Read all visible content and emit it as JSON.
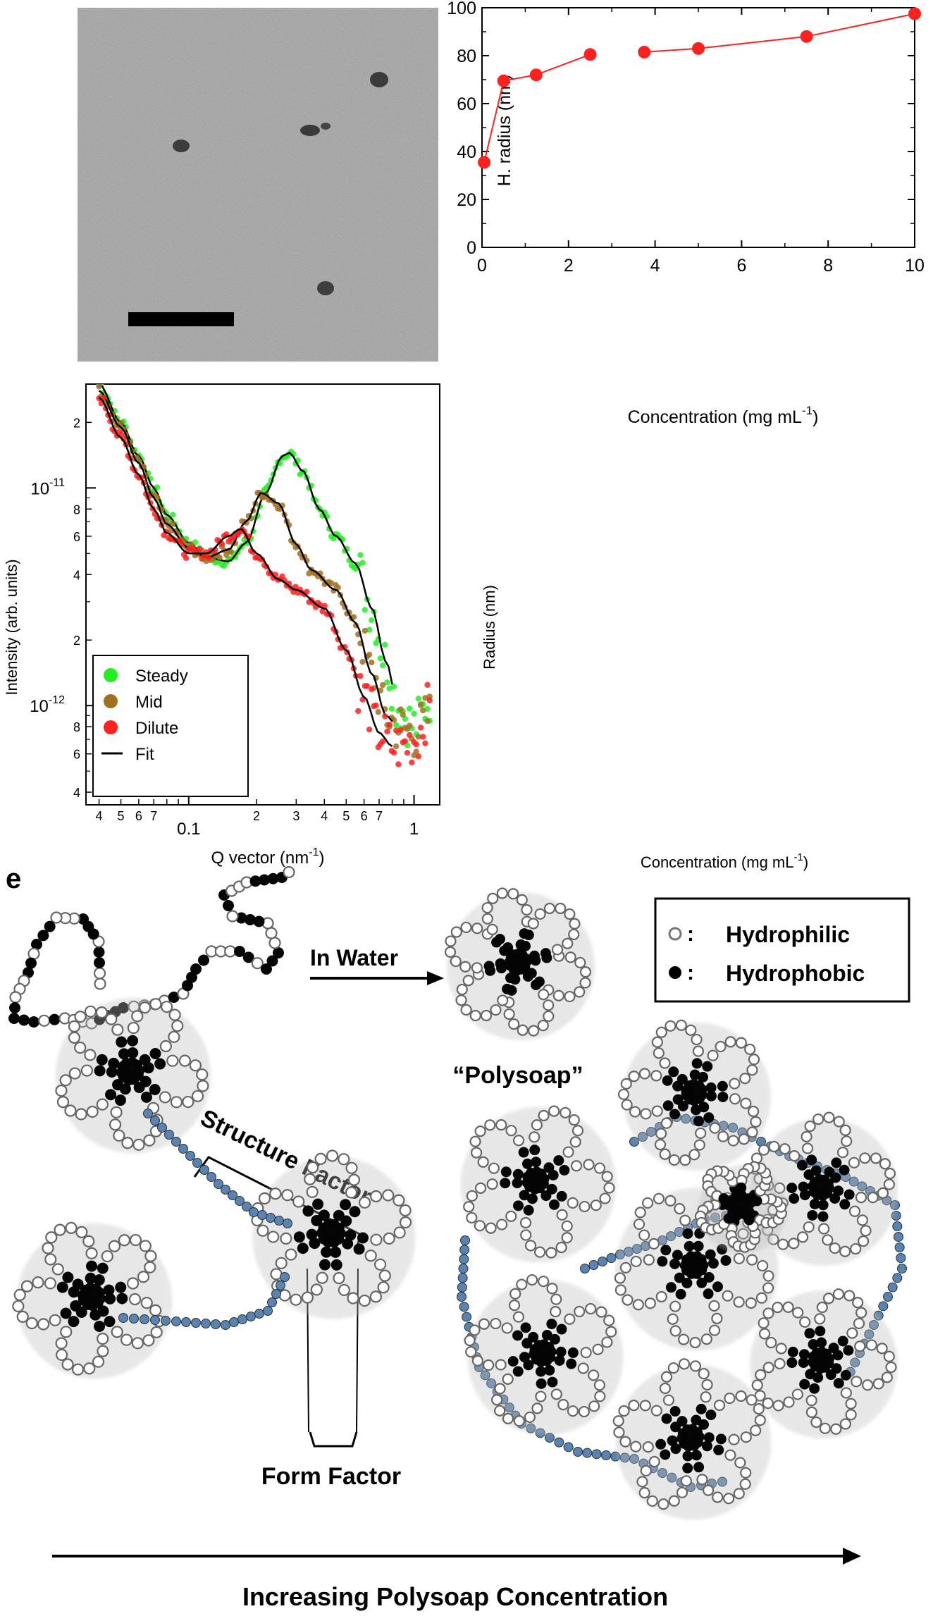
{
  "tem": {
    "icon": "tem-micrograph-image"
  },
  "dls": {
    "chart_data": {
      "type": "line",
      "title": "",
      "xlabel": "Concentration (mg mL",
      "xlabel_sup": "-1",
      "xlabel_close": ")",
      "ylabel": "H. radius (nm)",
      "xlim": [
        0,
        10
      ],
      "ylim": [
        0,
        100
      ],
      "xticks": [
        "0",
        "2",
        "4",
        "6",
        "8",
        "10"
      ],
      "yticks": [
        "0",
        "20",
        "40",
        "60",
        "80",
        "100"
      ],
      "x": [
        0.05,
        0.5,
        1.25,
        2.5,
        3.75,
        5,
        7.5,
        10
      ],
      "y": [
        35.5,
        69.5,
        72,
        80.5,
        81.5,
        83,
        88,
        97.5
      ],
      "color": "#ff2020",
      "grid": false
    }
  },
  "saxs": {
    "chart_data": {
      "type": "scatter",
      "title": "",
      "xlabel": "Q vector (nm",
      "xlabel_sup": "-1",
      "xlabel_close": ")",
      "ylabel": "Intensity (arb. units)",
      "xscale": "log",
      "yscale": "log",
      "xlim": [
        0.035,
        1.3
      ],
      "ylim": [
        3.5e-13,
        3e-11
      ],
      "x_minor_ticks": [
        "4",
        "5",
        "6",
        "7",
        "2",
        "3",
        "4",
        "5",
        "6",
        "7"
      ],
      "x_major_ticks": [
        "0.1",
        "1"
      ],
      "y_minor_ticks_upper": [
        "2",
        "8",
        "6",
        "4",
        "2"
      ],
      "y_major_ticks": [
        "10",
        "10"
      ],
      "y_major_exps": [
        "-11",
        "-12"
      ],
      "y_minor_ticks_lower": [
        "8",
        "6",
        "4"
      ],
      "legend_position": "bottom-left",
      "series": [
        {
          "name": "Steady",
          "color": "#22ee22",
          "x": [
            0.04,
            0.05,
            0.06,
            0.07,
            0.08,
            0.1,
            0.12,
            0.15,
            0.18,
            0.22,
            0.26,
            0.28,
            0.32,
            0.38,
            0.45,
            0.55,
            0.65,
            0.75,
            0.85,
            1.0,
            1.2
          ],
          "y": [
            3e-11,
            2e-11,
            1.4e-11,
            1e-11,
            7.5e-12,
            5.6e-12,
            4.8e-12,
            4.6e-12,
            5.6e-12,
            9.5e-12,
            1.4e-11,
            1.45e-11,
            1.2e-11,
            8e-12,
            6e-12,
            4.5e-12,
            2.8e-12,
            1.6e-12,
            1e-12,
            8e-13,
            1.1e-12
          ]
        },
        {
          "name": "Mid",
          "color": "#a07020",
          "x": [
            0.04,
            0.05,
            0.06,
            0.07,
            0.08,
            0.1,
            0.12,
            0.15,
            0.18,
            0.21,
            0.25,
            0.3,
            0.35,
            0.45,
            0.55,
            0.65,
            0.75,
            0.85,
            1.0,
            1.2
          ],
          "y": [
            2.8e-11,
            1.9e-11,
            1.3e-11,
            9e-12,
            6.8e-12,
            5.3e-12,
            4.8e-12,
            5.2e-12,
            7e-12,
            9.5e-12,
            8.5e-12,
            5.5e-12,
            4.2e-12,
            3.4e-12,
            2.4e-12,
            1.4e-12,
            9e-13,
            8e-13,
            7.5e-13,
            9e-13
          ]
        },
        {
          "name": "Dilute",
          "color": "#ff2020",
          "x": [
            0.04,
            0.05,
            0.06,
            0.07,
            0.08,
            0.1,
            0.12,
            0.15,
            0.17,
            0.2,
            0.25,
            0.3,
            0.4,
            0.5,
            0.6,
            0.7,
            0.8,
            0.9,
            1.0,
            1.2
          ],
          "y": [
            2.6e-11,
            1.7e-11,
            1.15e-11,
            8e-12,
            6.2e-12,
            5e-12,
            5e-12,
            6e-12,
            6.5e-12,
            5e-12,
            3.8e-12,
            3.4e-12,
            2.8e-12,
            1.8e-12,
            1.1e-12,
            7.5e-13,
            6.5e-13,
            6.5e-13,
            7e-13,
            1e-12
          ]
        }
      ],
      "fit_label": "Fit"
    }
  },
  "phantom": {
    "ylabel": "Radius (nm)",
    "xlabel": "Concentration (mg mL",
    "xlabel_sup": "-1",
    "xlabel_close": ")"
  },
  "schematic": {
    "panel_letter": "e",
    "in_water": "In Water",
    "polysoap": "“Polysoap”",
    "legend_hydrophilic": "Hydrophilic",
    "legend_hydrophobic": "Hydrophobic",
    "colon": ":",
    "structure_factor": "Structure Factor",
    "form_factor": "Form Factor",
    "increasing": "Increasing Polysoap Concentration"
  }
}
